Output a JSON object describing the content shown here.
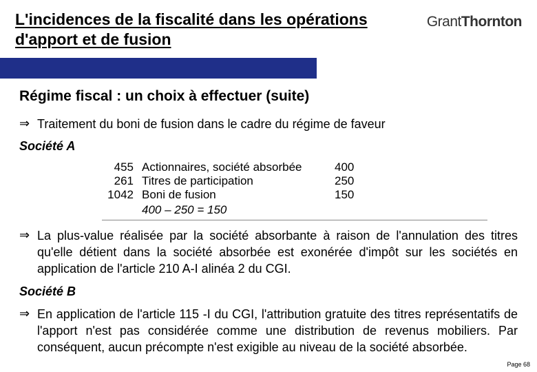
{
  "header": {
    "title": "L'incidences de la fiscalité  dans les opérations d'apport et de fusion",
    "logo_part1": "Grant",
    "logo_part2": "Thornton"
  },
  "subheading": "Régime fiscal : un choix à effectuer (suite)",
  "bullet1": "Traitement du boni de fusion dans le cadre du régime de faveur",
  "societe_a": "Société A",
  "table": {
    "rows": [
      {
        "left_num": "455",
        "label": "Actionnaires, société absorbée",
        "right_num": "400"
      },
      {
        "left_num": "261",
        "label": "Titres de participation",
        "right_num": "250"
      },
      {
        "left_num": "1042",
        "label": "Boni de fusion",
        "right_num": "150"
      }
    ],
    "formula": "400 – 250 = 150"
  },
  "bullet2": "La plus-value réalisée par la société absorbante à raison de l'annulation des titres qu'elle détient dans la société absorbée est exonérée d'impôt sur les sociétés en application de l'article 210 A-I alinéa 2 du CGI.",
  "societe_b": "Société B",
  "bullet3": "En application de l'article 115 -I du CGI, l'attribution gratuite des titres représentatifs de l'apport n'est pas considérée comme une distribution de revenus mobiliers. Par conséquent, aucun précompte n'est exigible au niveau de la société absorbée.",
  "page_number": "Page  68",
  "colors": {
    "blue_bar": "#1f2f89",
    "text": "#000000",
    "background": "#ffffff",
    "rule": "#888888"
  }
}
